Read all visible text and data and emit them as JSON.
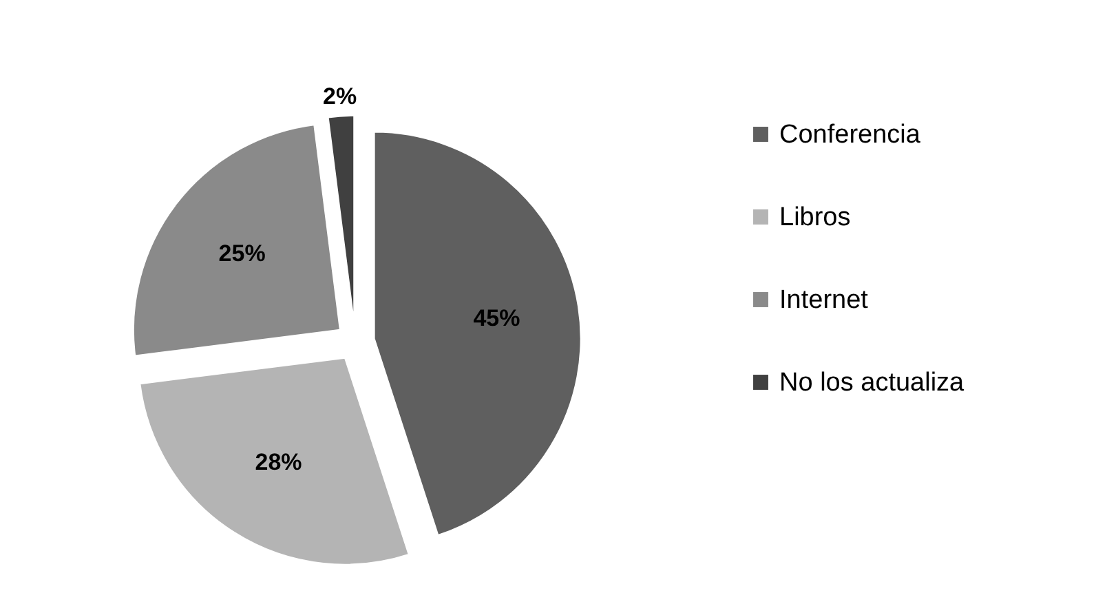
{
  "chart_data": {
    "type": "pie",
    "categories": [
      "Conferencia",
      "Libros",
      "Internet",
      "No los actualiza"
    ],
    "values": [
      45,
      28,
      25,
      2
    ],
    "colors": [
      "#5f5f5f",
      "#b4b4b4",
      "#8a8a8a",
      "#404040"
    ],
    "value_labels": [
      "45%",
      "28%",
      "25%",
      "2%"
    ],
    "legend": "right"
  }
}
